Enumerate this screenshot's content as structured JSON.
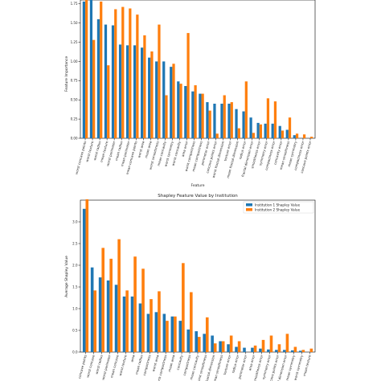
{
  "colors": {
    "inst1": "#1f77b4",
    "inst2": "#ff7f0e",
    "axis": "#000000"
  },
  "chart_data": [
    {
      "type": "bar",
      "title": "",
      "xlabel": "Feature",
      "ylabel": "Feature Importance",
      "ylim": [
        0.0,
        1.8
      ],
      "yticks": [
        "0.00",
        "0.25",
        "0.50",
        "0.75",
        "1.00",
        "1.25",
        "1.50",
        "1.75"
      ],
      "grid": false,
      "categories": [
        "worst concave points",
        "worst texture",
        "worst radius",
        "mean texture",
        "worst perimeter",
        "mean radius",
        "mean perimeter",
        "mean concave points",
        "worst area",
        "mean area",
        "worst smoothness",
        "mean concavity",
        "worst symmetry",
        "worst concavity",
        "area error",
        "worst compactness",
        "mean compactness",
        "perimeter error",
        "concave points error",
        "worst fractal dimension",
        "texture error",
        "mean fractal dimension",
        "radius error",
        "fractal dimension error",
        "smoothness error",
        "symmetry error",
        "compactness error",
        "concavity error",
        "mean smoothness",
        "mean symmetry",
        "compactness error",
        "concave points error"
      ],
      "series": [
        {
          "name": "",
          "values": [
            1.78,
            1.85,
            1.55,
            1.48,
            1.47,
            1.22,
            1.21,
            1.21,
            1.18,
            1.05,
            1.0,
            1.0,
            0.93,
            0.74,
            0.68,
            0.61,
            0.58,
            0.47,
            0.45,
            0.45,
            0.45,
            0.38,
            0.35,
            0.27,
            0.2,
            0.19,
            0.19,
            0.16,
            0.11,
            0.04,
            0.0,
            0.0
          ]
        },
        {
          "name": "",
          "values": [
            1.82,
            1.28,
            1.78,
            0.95,
            1.68,
            1.71,
            1.69,
            1.61,
            1.34,
            1.13,
            1.48,
            0.56,
            0.97,
            0.71,
            1.37,
            0.69,
            0.58,
            0.36,
            0.06,
            0.56,
            0.47,
            0.13,
            0.74,
            0.07,
            0.18,
            0.52,
            0.48,
            0.1,
            0.27,
            0.06,
            0.05,
            0.02
          ]
        }
      ]
    },
    {
      "type": "bar",
      "title": "Shapley Feature Value by Institution",
      "xlabel": "",
      "ylabel": "Average Shapley Value",
      "ylim": [
        0.0,
        3.5
      ],
      "yticks": [
        "0.0",
        "0.5",
        "1.0",
        "1.5",
        "2.0",
        "2.5",
        "3.0"
      ],
      "grid": false,
      "legend_position": "top-right",
      "categories": [
        "concave points",
        "worst concave",
        "worst radius",
        "worst perimeter",
        "mean concave",
        "worst texture",
        "area",
        "mean radius",
        "compactness",
        "worst area",
        "worst compactness",
        "mean area",
        "concavity",
        "compactness",
        "mean concavity",
        "worst smoothness",
        "fractal dimension",
        "mean smoothness",
        "texture error",
        "radius error",
        "perimeter error",
        "area error",
        "smoothness error",
        "symmetry error",
        "concave points error",
        "fractal dimension error",
        "mean symmetry",
        "worst symmetry",
        "mean texture"
      ],
      "series": [
        {
          "name": "Institution 1 Shapley Value",
          "values": [
            3.3,
            1.95,
            1.72,
            1.65,
            1.55,
            1.28,
            1.28,
            1.12,
            0.88,
            0.92,
            0.88,
            0.82,
            0.72,
            0.52,
            0.48,
            0.42,
            0.38,
            0.25,
            0.18,
            0.12,
            0.1,
            0.1,
            0.08,
            0.06,
            0.05,
            0.05,
            0.04,
            0.03,
            0.0
          ]
        },
        {
          "name": "Institution 2 Shapley Value",
          "values": [
            3.52,
            1.42,
            2.4,
            2.15,
            2.6,
            1.42,
            2.2,
            1.92,
            1.22,
            1.4,
            0.72,
            0.82,
            2.05,
            1.38,
            0.35,
            0.8,
            0.2,
            0.25,
            0.38,
            0.25,
            0.0,
            0.15,
            0.28,
            0.38,
            0.18,
            0.42,
            0.12,
            0.05,
            0.08
          ]
        }
      ]
    }
  ]
}
